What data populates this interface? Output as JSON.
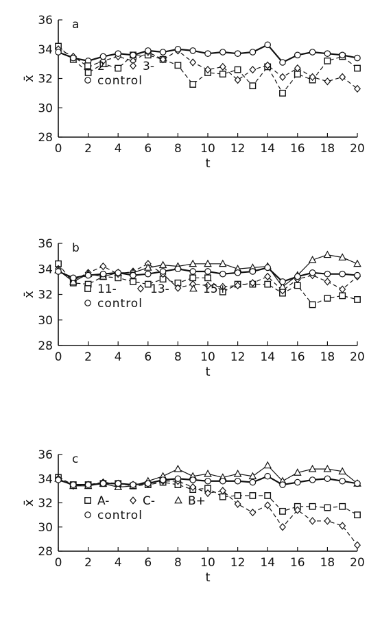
{
  "chart_data": [
    {
      "type": "line",
      "panel_label": "a",
      "xlabel": "t",
      "ylabel": "x̄",
      "xlim": [
        0,
        20
      ],
      "ylim": [
        28,
        36
      ],
      "xticks": [
        0,
        2,
        4,
        6,
        8,
        10,
        12,
        14,
        16,
        18,
        20
      ],
      "yticks": [
        28,
        30,
        32,
        34,
        36
      ],
      "x": [
        0,
        1,
        2,
        3,
        4,
        5,
        6,
        7,
        8,
        9,
        10,
        11,
        12,
        13,
        14,
        15,
        16,
        17,
        18,
        19,
        20
      ],
      "legend": [
        {
          "marker": "square",
          "text": "2-"
        },
        {
          "marker": "diamond",
          "text": "3-"
        },
        {
          "marker": "circle",
          "text": "control"
        }
      ],
      "series": [
        {
          "name": "2-",
          "marker": "square",
          "values": [
            34.2,
            33.3,
            32.4,
            33.0,
            32.7,
            33.6,
            33.6,
            33.3,
            32.9,
            31.6,
            32.4,
            32.3,
            32.6,
            31.5,
            32.8,
            31.0,
            32.3,
            31.9,
            33.2,
            33.5,
            32.7
          ]
        },
        {
          "name": "3-",
          "marker": "diamond",
          "values": [
            34.0,
            33.5,
            32.8,
            33.2,
            33.5,
            33.2,
            33.8,
            33.3,
            33.9,
            33.1,
            32.6,
            32.8,
            31.9,
            32.6,
            32.9,
            32.1,
            32.7,
            32.1,
            31.8,
            32.1,
            31.3
          ]
        },
        {
          "name": "control",
          "marker": "circle",
          "values": [
            33.8,
            33.4,
            33.2,
            33.5,
            33.7,
            33.6,
            33.9,
            33.8,
            34.0,
            33.9,
            33.7,
            33.8,
            33.7,
            33.8,
            34.3,
            33.1,
            33.6,
            33.8,
            33.7,
            33.6,
            33.4
          ]
        }
      ]
    },
    {
      "type": "line",
      "panel_label": "b",
      "xlabel": "t",
      "ylabel": "x̄",
      "xlim": [
        0,
        20
      ],
      "ylim": [
        28,
        36
      ],
      "xticks": [
        0,
        2,
        4,
        6,
        8,
        10,
        12,
        14,
        16,
        18,
        20
      ],
      "yticks": [
        28,
        30,
        32,
        34,
        36
      ],
      "x": [
        0,
        1,
        2,
        3,
        4,
        5,
        6,
        7,
        8,
        9,
        10,
        11,
        12,
        13,
        14,
        15,
        16,
        17,
        18,
        19,
        20
      ],
      "legend": [
        {
          "marker": "square",
          "text": "11-"
        },
        {
          "marker": "diamond",
          "text": "13-"
        },
        {
          "marker": "triangle",
          "text": "15+"
        },
        {
          "marker": "circle",
          "text": "control"
        }
      ],
      "series": [
        {
          "name": "11-",
          "marker": "square",
          "values": [
            34.4,
            32.9,
            32.8,
            33.4,
            33.3,
            33.0,
            32.8,
            33.2,
            32.9,
            33.3,
            33.3,
            32.2,
            32.8,
            32.8,
            32.8,
            32.1,
            32.7,
            31.2,
            31.7,
            31.9,
            31.6
          ]
        },
        {
          "name": "13-",
          "marker": "diamond",
          "values": [
            34.0,
            33.1,
            33.7,
            34.2,
            33.6,
            33.8,
            34.4,
            33.6,
            32.5,
            32.8,
            32.7,
            32.6,
            32.7,
            32.9,
            33.4,
            32.3,
            33.2,
            33.5,
            33.0,
            32.4,
            33.4
          ]
        },
        {
          "name": "15+",
          "marker": "triangle",
          "values": [
            33.9,
            33.0,
            33.6,
            33.4,
            33.7,
            33.7,
            34.1,
            34.3,
            34.2,
            34.4,
            34.4,
            34.4,
            34.0,
            34.1,
            34.2,
            32.6,
            33.5,
            34.7,
            35.1,
            34.9,
            34.4
          ]
        },
        {
          "name": "control",
          "marker": "circle",
          "values": [
            33.8,
            33.3,
            33.5,
            33.6,
            33.7,
            33.5,
            33.6,
            33.8,
            34.0,
            33.8,
            33.8,
            33.6,
            33.7,
            33.8,
            34.1,
            33.0,
            33.4,
            33.7,
            33.6,
            33.6,
            33.5
          ]
        }
      ]
    },
    {
      "type": "line",
      "panel_label": "c",
      "xlabel": "t",
      "ylabel": "x̄",
      "xlim": [
        0,
        20
      ],
      "ylim": [
        28,
        36
      ],
      "xticks": [
        0,
        2,
        4,
        6,
        8,
        10,
        12,
        14,
        16,
        18,
        20
      ],
      "yticks": [
        28,
        30,
        32,
        34,
        36
      ],
      "x": [
        0,
        1,
        2,
        3,
        4,
        5,
        6,
        7,
        8,
        9,
        10,
        11,
        12,
        13,
        14,
        15,
        16,
        17,
        18,
        19,
        20
      ],
      "legend": [
        {
          "marker": "square",
          "text": "A-"
        },
        {
          "marker": "diamond",
          "text": "C-"
        },
        {
          "marker": "triangle",
          "text": "B+"
        },
        {
          "marker": "circle",
          "text": "control"
        }
      ],
      "series": [
        {
          "name": "A-",
          "marker": "square",
          "values": [
            34.1,
            33.5,
            33.5,
            33.6,
            33.6,
            33.4,
            33.5,
            33.7,
            33.5,
            33.1,
            33.2,
            32.5,
            32.6,
            32.6,
            32.6,
            31.3,
            31.7,
            31.7,
            31.6,
            31.7,
            31.0
          ]
        },
        {
          "name": "C-",
          "marker": "diamond",
          "values": [
            34.0,
            33.4,
            33.5,
            33.7,
            33.6,
            33.5,
            33.6,
            33.8,
            33.8,
            33.3,
            32.8,
            33.0,
            31.9,
            31.2,
            31.8,
            30.0,
            31.4,
            30.5,
            30.5,
            30.1,
            28.5
          ]
        },
        {
          "name": "B+",
          "marker": "triangle",
          "values": [
            34.0,
            33.4,
            33.4,
            33.6,
            33.3,
            33.4,
            33.8,
            34.2,
            34.8,
            34.2,
            34.4,
            34.1,
            34.4,
            34.2,
            35.1,
            33.8,
            34.5,
            34.8,
            34.8,
            34.6,
            33.6
          ]
        },
        {
          "name": "control",
          "marker": "circle",
          "values": [
            33.9,
            33.5,
            33.5,
            33.6,
            33.6,
            33.5,
            33.6,
            33.9,
            34.0,
            33.9,
            33.8,
            33.8,
            33.8,
            33.7,
            34.2,
            33.5,
            33.7,
            33.9,
            34.0,
            33.8,
            33.6
          ]
        }
      ]
    }
  ]
}
